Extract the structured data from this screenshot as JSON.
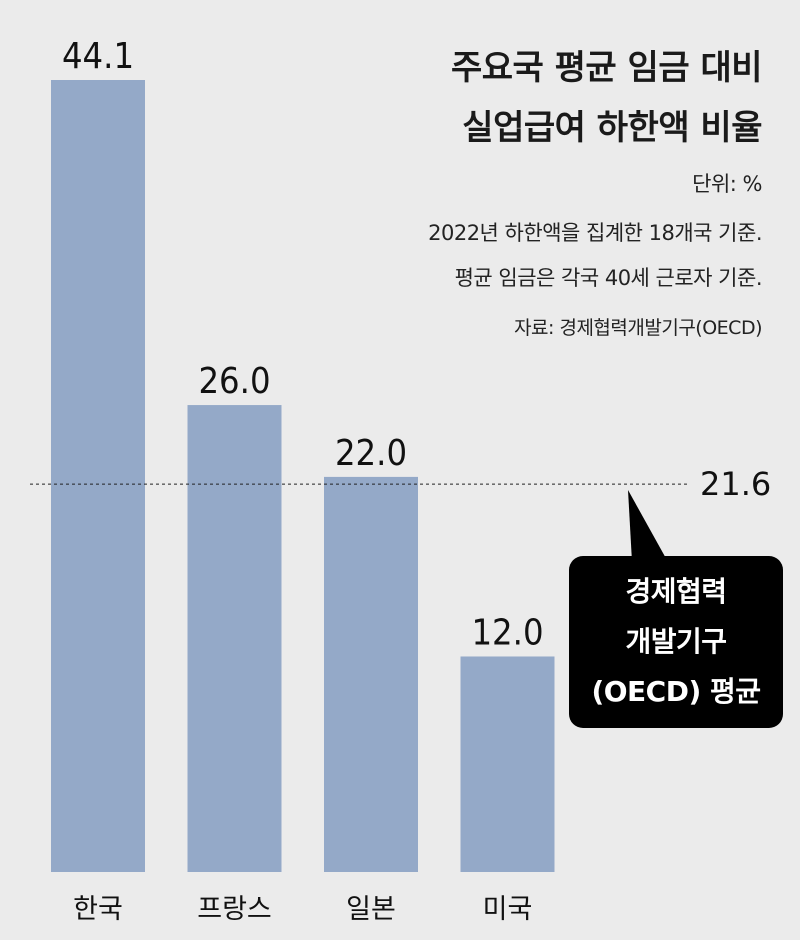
{
  "chart_data": {
    "type": "bar",
    "title": "주요국 평균 임금 대비",
    "title_line2": "실업급여 하한액 비율",
    "unit": "단위: %",
    "notes": [
      "2022년 하한액을 집계한 18개국 기준.",
      "평균 임금은 각국 40세 근로자 기준."
    ],
    "source": "자료: 경제협력개발기구(OECD)",
    "categories": [
      "한국",
      "프랑스",
      "일본",
      "미국"
    ],
    "values": [
      44.1,
      26.0,
      22.0,
      12.0
    ],
    "value_labels": [
      "44.1",
      "26.0",
      "22.0",
      "12.0"
    ],
    "reference_line": {
      "value": 21.6,
      "label": "21.6",
      "callout_lines": [
        "경제협력",
        "개발기구",
        "(OECD) 평균"
      ]
    },
    "ylim": [
      0,
      44.1
    ],
    "grid": false,
    "colors": {
      "bar": "#94a9c8",
      "background": "#ebebeb",
      "callout": "#000000"
    }
  }
}
